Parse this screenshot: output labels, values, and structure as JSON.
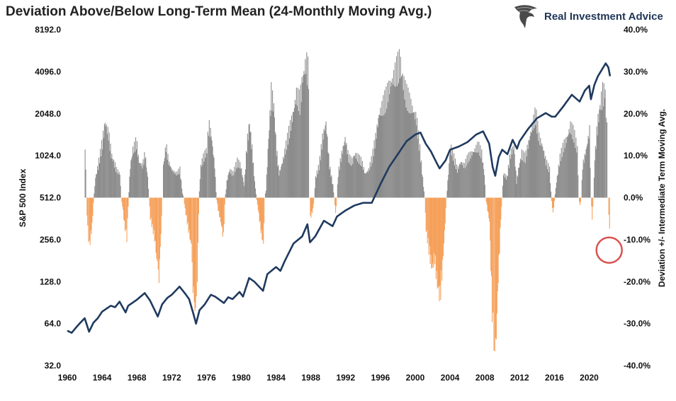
{
  "header": {
    "title": "Deviation Above/Below Long-Term Mean (24-Monthly Moving Avg.)",
    "brand_name": "Real Investment Advice"
  },
  "chart_data": {
    "type": "bar",
    "title": "Deviation Above/Below Long-Term Mean (24-Monthly Moving Avg.)",
    "xlabel": "",
    "ylabel_left": "S&P 500 Index",
    "ylabel_right": "Deviation +/- Intermediate Term Moving Avg.",
    "left_axis": {
      "scale": "log2",
      "ylim": [
        32,
        8192
      ],
      "ticks": [
        "8192.0",
        "4096.0",
        "2048.0",
        "1024.0",
        "512.0",
        "256.0",
        "128.0",
        "64.0",
        "32.0"
      ],
      "tick_values": [
        8192,
        4096,
        2048,
        1024,
        512,
        256,
        128,
        64,
        32
      ]
    },
    "right_axis": {
      "ylim": [
        -40,
        40
      ],
      "ticks": [
        "40.0%",
        "30.0%",
        "20.0%",
        "10.0%",
        "0.0%",
        "-10.0%",
        "-20.0%",
        "-30.0%",
        "-40.0%"
      ],
      "tick_values": [
        40,
        30,
        20,
        10,
        0,
        -10,
        -20,
        -30,
        -40
      ]
    },
    "x_axis": {
      "xlim": [
        1960,
        2023.3
      ],
      "ticks": [
        "1960",
        "1964",
        "1968",
        "1972",
        "1976",
        "1980",
        "1984",
        "1988",
        "1992",
        "1996",
        "2000",
        "2004",
        "2008",
        "2012",
        "2016",
        "2020"
      ],
      "tick_values": [
        1960,
        1964,
        1968,
        1972,
        1976,
        1980,
        1984,
        1988,
        1992,
        1996,
        2000,
        2004,
        2008,
        2012,
        2016,
        2020
      ]
    },
    "grid": false,
    "colors": {
      "line": "#1f3a5f",
      "positive_bars": "#8c8c8c",
      "negative_bars": "#f5a05a",
      "highlight_circle": "#d9534f"
    },
    "annotation": {
      "shape": "circle",
      "x": 2022.3,
      "y_right": -12.5
    },
    "series": [
      {
        "axis": "left",
        "kind": "line",
        "points": [
          [
            1960.0,
            57
          ],
          [
            1960.5,
            55
          ],
          [
            1961.0,
            60
          ],
          [
            1961.5,
            65
          ],
          [
            1962.0,
            70
          ],
          [
            1962.5,
            56
          ],
          [
            1963.0,
            65
          ],
          [
            1963.5,
            70
          ],
          [
            1964.0,
            78
          ],
          [
            1964.5,
            82
          ],
          [
            1965.0,
            86
          ],
          [
            1965.5,
            84
          ],
          [
            1966.0,
            92
          ],
          [
            1966.7,
            77
          ],
          [
            1967.0,
            86
          ],
          [
            1968.0,
            95
          ],
          [
            1968.9,
            106
          ],
          [
            1969.5,
            94
          ],
          [
            1970.4,
            72
          ],
          [
            1970.9,
            88
          ],
          [
            1971.5,
            98
          ],
          [
            1972.0,
            103
          ],
          [
            1972.9,
            118
          ],
          [
            1973.5,
            106
          ],
          [
            1974.0,
            96
          ],
          [
            1974.5,
            75
          ],
          [
            1974.8,
            64
          ],
          [
            1975.2,
            80
          ],
          [
            1975.8,
            88
          ],
          [
            1976.5,
            103
          ],
          [
            1977.0,
            100
          ],
          [
            1978.0,
            90
          ],
          [
            1978.5,
            99
          ],
          [
            1979.0,
            96
          ],
          [
            1979.8,
            108
          ],
          [
            1980.2,
            100
          ],
          [
            1980.9,
            136
          ],
          [
            1981.5,
            128
          ],
          [
            1982.5,
            110
          ],
          [
            1983.0,
            145
          ],
          [
            1984.0,
            163
          ],
          [
            1984.5,
            153
          ],
          [
            1985.0,
            180
          ],
          [
            1986.0,
            240
          ],
          [
            1987.0,
            270
          ],
          [
            1987.6,
            330
          ],
          [
            1987.9,
            245
          ],
          [
            1988.5,
            270
          ],
          [
            1989.5,
            350
          ],
          [
            1990.5,
            320
          ],
          [
            1991.0,
            375
          ],
          [
            1992.0,
            415
          ],
          [
            1993.0,
            450
          ],
          [
            1994.0,
            470
          ],
          [
            1995.0,
            470
          ],
          [
            1996.0,
            640
          ],
          [
            1997.0,
            850
          ],
          [
            1998.0,
            1050
          ],
          [
            1999.0,
            1300
          ],
          [
            2000.0,
            1450
          ],
          [
            2000.6,
            1500
          ],
          [
            2001.2,
            1250
          ],
          [
            2001.8,
            1100
          ],
          [
            2002.5,
            900
          ],
          [
            2002.8,
            830
          ],
          [
            2003.5,
            950
          ],
          [
            2004.0,
            1130
          ],
          [
            2005.0,
            1190
          ],
          [
            2006.0,
            1280
          ],
          [
            2007.0,
            1450
          ],
          [
            2007.8,
            1530
          ],
          [
            2008.5,
            1250
          ],
          [
            2008.9,
            850
          ],
          [
            2009.2,
            735
          ],
          [
            2009.6,
            1000
          ],
          [
            2010.0,
            1130
          ],
          [
            2010.6,
            1050
          ],
          [
            2011.2,
            1330
          ],
          [
            2011.7,
            1150
          ],
          [
            2012.0,
            1300
          ],
          [
            2013.0,
            1600
          ],
          [
            2014.0,
            1900
          ],
          [
            2015.0,
            2070
          ],
          [
            2015.7,
            1950
          ],
          [
            2016.1,
            1950
          ],
          [
            2017.0,
            2300
          ],
          [
            2018.0,
            2800
          ],
          [
            2018.9,
            2500
          ],
          [
            2019.5,
            3000
          ],
          [
            2020.0,
            3250
          ],
          [
            2020.2,
            2600
          ],
          [
            2020.6,
            3300
          ],
          [
            2021.0,
            3800
          ],
          [
            2021.9,
            4700
          ],
          [
            2022.2,
            4400
          ],
          [
            2022.4,
            3800
          ]
        ]
      },
      {
        "axis": "right",
        "kind": "bar",
        "points": [
          [
            1962.0,
            13
          ],
          [
            1962.3,
            -8
          ],
          [
            1962.5,
            -12
          ],
          [
            1962.8,
            -7
          ],
          [
            1963.2,
            5
          ],
          [
            1963.5,
            8
          ],
          [
            1964.0,
            14
          ],
          [
            1964.3,
            19
          ],
          [
            1964.7,
            16
          ],
          [
            1965.0,
            11
          ],
          [
            1965.3,
            9
          ],
          [
            1965.6,
            7
          ],
          [
            1966.0,
            6
          ],
          [
            1966.3,
            -2
          ],
          [
            1966.6,
            -8
          ],
          [
            1966.8,
            -10
          ],
          [
            1967.2,
            8
          ],
          [
            1967.5,
            12
          ],
          [
            1967.9,
            14
          ],
          [
            1968.2,
            9
          ],
          [
            1968.6,
            8
          ],
          [
            1968.9,
            11
          ],
          [
            1969.2,
            5
          ],
          [
            1969.5,
            -5
          ],
          [
            1970.0,
            -10
          ],
          [
            1970.3,
            -17
          ],
          [
            1970.5,
            -20
          ],
          [
            1970.8,
            -5
          ],
          [
            1971.0,
            8
          ],
          [
            1971.3,
            13
          ],
          [
            1971.6,
            9
          ],
          [
            1972.0,
            7
          ],
          [
            1972.5,
            6
          ],
          [
            1972.9,
            7
          ],
          [
            1973.2,
            1
          ],
          [
            1973.5,
            -3
          ],
          [
            1973.9,
            -8
          ],
          [
            1974.2,
            -12
          ],
          [
            1974.4,
            -22
          ],
          [
            1974.7,
            -30
          ],
          [
            1974.9,
            -20
          ],
          [
            1975.3,
            8
          ],
          [
            1975.6,
            10
          ],
          [
            1976.0,
            12
          ],
          [
            1976.2,
            18
          ],
          [
            1976.5,
            16
          ],
          [
            1976.9,
            8
          ],
          [
            1977.3,
            -3
          ],
          [
            1977.6,
            -6
          ],
          [
            1977.9,
            -10
          ],
          [
            1978.3,
            4
          ],
          [
            1978.6,
            7
          ],
          [
            1979.0,
            6
          ],
          [
            1979.5,
            9
          ],
          [
            1979.9,
            8
          ],
          [
            1980.3,
            3
          ],
          [
            1980.6,
            13
          ],
          [
            1980.9,
            19
          ],
          [
            1981.2,
            12
          ],
          [
            1981.5,
            4
          ],
          [
            1981.9,
            -3
          ],
          [
            1982.2,
            -8
          ],
          [
            1982.5,
            -12
          ],
          [
            1982.8,
            2
          ],
          [
            1983.1,
            15
          ],
          [
            1983.4,
            26
          ],
          [
            1983.7,
            23
          ],
          [
            1984.0,
            12
          ],
          [
            1984.3,
            6
          ],
          [
            1984.7,
            9
          ],
          [
            1985.1,
            13
          ],
          [
            1985.5,
            17
          ],
          [
            1985.9,
            21
          ],
          [
            1986.3,
            26
          ],
          [
            1986.7,
            24
          ],
          [
            1987.0,
            30
          ],
          [
            1987.4,
            34
          ],
          [
            1987.7,
            31
          ],
          [
            1987.9,
            -5
          ],
          [
            1988.2,
            -3
          ],
          [
            1988.5,
            5
          ],
          [
            1988.9,
            8
          ],
          [
            1989.3,
            15
          ],
          [
            1989.7,
            19
          ],
          [
            1990.1,
            8
          ],
          [
            1990.5,
            3
          ],
          [
            1990.8,
            -4
          ],
          [
            1991.1,
            6
          ],
          [
            1991.5,
            11
          ],
          [
            1991.9,
            15
          ],
          [
            1992.3,
            10
          ],
          [
            1992.7,
            9
          ],
          [
            1993.0,
            11
          ],
          [
            1993.4,
            10
          ],
          [
            1993.8,
            9
          ],
          [
            1994.2,
            6
          ],
          [
            1994.6,
            7
          ],
          [
            1995.0,
            10
          ],
          [
            1995.4,
            15
          ],
          [
            1995.8,
            21
          ],
          [
            1996.2,
            23
          ],
          [
            1996.6,
            25
          ],
          [
            1997.0,
            28
          ],
          [
            1997.4,
            30
          ],
          [
            1997.8,
            32
          ],
          [
            1998.2,
            34
          ],
          [
            1998.5,
            30
          ],
          [
            1998.9,
            26
          ],
          [
            1999.3,
            24
          ],
          [
            1999.7,
            22
          ],
          [
            2000.1,
            20
          ],
          [
            2000.5,
            12
          ],
          [
            2000.9,
            3
          ],
          [
            2001.2,
            -8
          ],
          [
            2001.6,
            -14
          ],
          [
            2001.9,
            -18
          ],
          [
            2002.2,
            -15
          ],
          [
            2002.5,
            -22
          ],
          [
            2002.8,
            -25
          ],
          [
            2003.1,
            -17
          ],
          [
            2003.4,
            -6
          ],
          [
            2003.7,
            4
          ],
          [
            2004.0,
            13
          ],
          [
            2004.4,
            10
          ],
          [
            2004.8,
            7
          ],
          [
            2005.2,
            9
          ],
          [
            2005.6,
            8
          ],
          [
            2006.0,
            10
          ],
          [
            2006.4,
            11
          ],
          [
            2006.8,
            12
          ],
          [
            2007.2,
            13
          ],
          [
            2007.6,
            11
          ],
          [
            2007.9,
            6
          ],
          [
            2008.2,
            -2
          ],
          [
            2008.5,
            -6
          ],
          [
            2008.8,
            -28
          ],
          [
            2009.0,
            -37
          ],
          [
            2009.2,
            -39
          ],
          [
            2009.5,
            -20
          ],
          [
            2009.8,
            -5
          ],
          [
            2010.1,
            6
          ],
          [
            2010.5,
            5
          ],
          [
            2010.9,
            11
          ],
          [
            2011.3,
            13
          ],
          [
            2011.6,
            4
          ],
          [
            2011.9,
            8
          ],
          [
            2012.2,
            11
          ],
          [
            2012.6,
            10
          ],
          [
            2013.0,
            14
          ],
          [
            2013.4,
            18
          ],
          [
            2013.8,
            21
          ],
          [
            2014.2,
            15
          ],
          [
            2014.6,
            13
          ],
          [
            2015.0,
            9
          ],
          [
            2015.4,
            7
          ],
          [
            2015.8,
            -4
          ],
          [
            2016.2,
            4
          ],
          [
            2016.6,
            10
          ],
          [
            2017.0,
            13
          ],
          [
            2017.4,
            15
          ],
          [
            2017.8,
            18
          ],
          [
            2018.2,
            16
          ],
          [
            2018.6,
            12
          ],
          [
            2018.9,
            -2
          ],
          [
            2019.2,
            8
          ],
          [
            2019.6,
            12
          ],
          [
            2020.0,
            17
          ],
          [
            2020.3,
            -5
          ],
          [
            2020.6,
            10
          ],
          [
            2020.9,
            18
          ],
          [
            2021.2,
            23
          ],
          [
            2021.5,
            26
          ],
          [
            2021.8,
            27
          ],
          [
            2022.0,
            17
          ],
          [
            2022.2,
            -4
          ],
          [
            2022.4,
            -12
          ]
        ]
      }
    ]
  }
}
